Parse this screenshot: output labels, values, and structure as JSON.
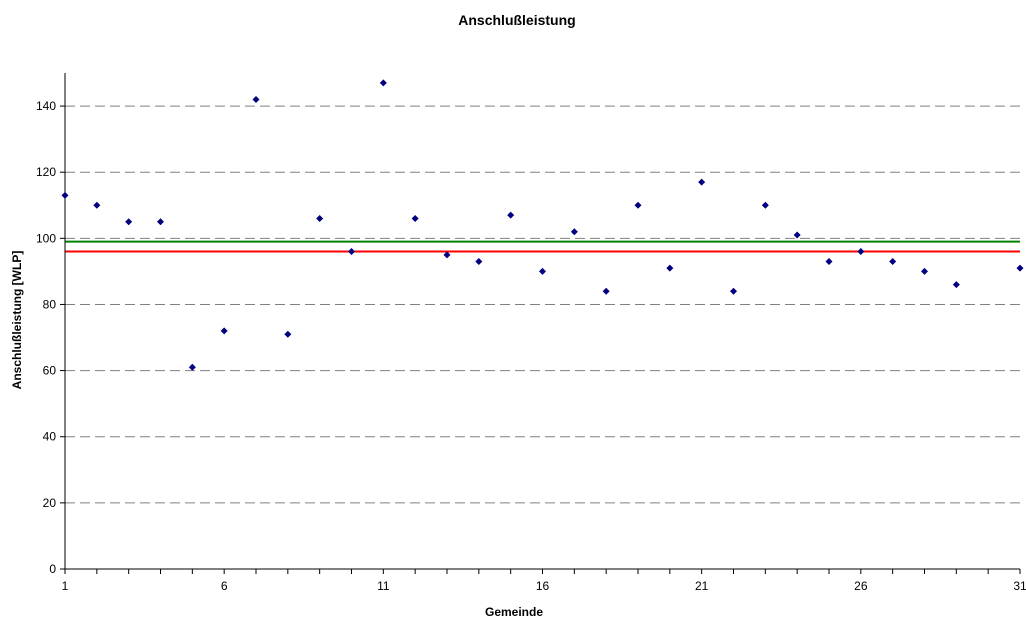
{
  "chart_data": {
    "type": "scatter",
    "title": "Anschlußleistung",
    "xlabel": "Gemeinde",
    "ylabel": "Anschlußleistung [WLP]",
    "xlim": [
      1,
      31
    ],
    "ylim": [
      0,
      150
    ],
    "x_ticks": [
      1,
      6,
      11,
      16,
      21,
      26,
      31
    ],
    "y_ticks": [
      0,
      20,
      40,
      60,
      80,
      100,
      120,
      140
    ],
    "grid": "horizontal dashed",
    "legend": "none",
    "series": [
      {
        "x": [
          1,
          2,
          3,
          4,
          5,
          6,
          7,
          8,
          9,
          10,
          11,
          12,
          13,
          14,
          15,
          16,
          17,
          18,
          19,
          20,
          21,
          22,
          23,
          24,
          25,
          26,
          27,
          28,
          29,
          30,
          31
        ],
        "y": [
          113,
          110,
          105,
          105,
          61,
          72,
          142,
          71,
          106,
          96,
          147,
          106,
          95,
          93,
          107,
          90,
          102,
          84,
          110,
          91,
          117,
          84,
          110,
          101,
          93,
          96,
          93,
          90,
          86,
          null,
          91
        ],
        "color": "#000080"
      }
    ],
    "reference_lines": [
      {
        "y": 99,
        "color": "#008000"
      },
      {
        "y": 96,
        "color": "#ff0000"
      }
    ],
    "colors": {
      "grid": "#808080",
      "axis": "#000000"
    }
  }
}
